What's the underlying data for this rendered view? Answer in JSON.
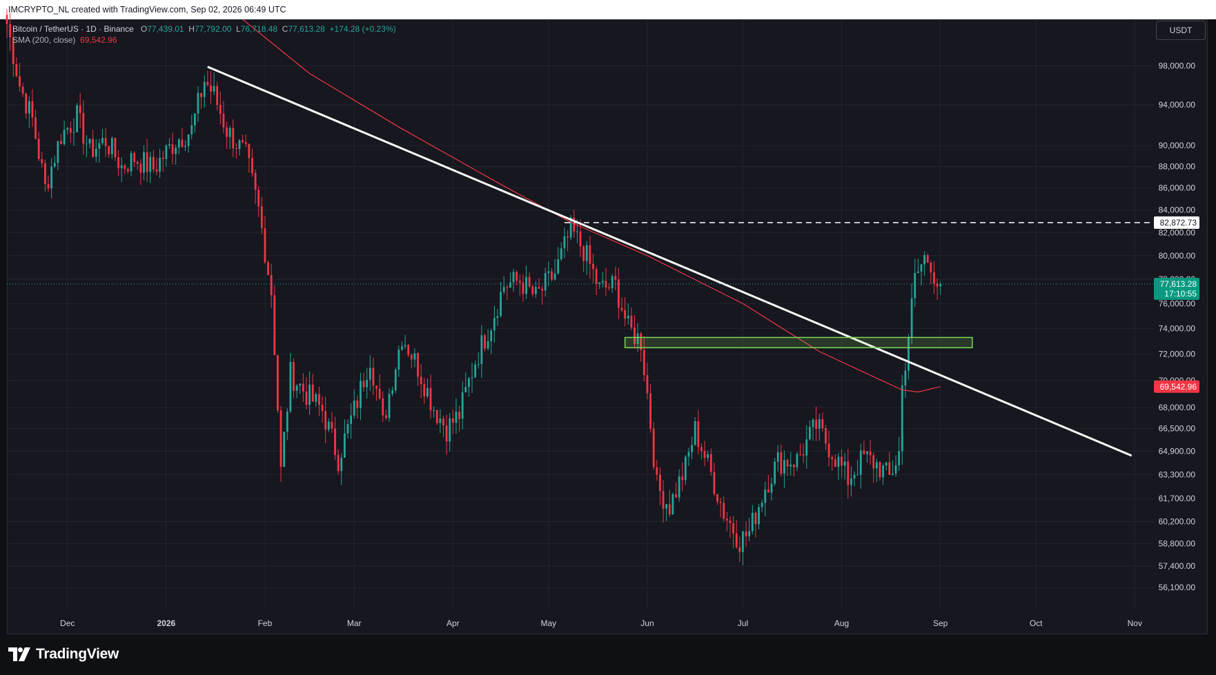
{
  "header": {
    "text": "IMCRYPTO_NL created with TradingView.com, Sep 02, 2026 06:49 UTC"
  },
  "legend": {
    "symbol": "Bitcoin / TetherUS · 1D · Binance",
    "open_label": "O",
    "open": "77,439.01",
    "high_label": "H",
    "high": "77,792.00",
    "low_label": "L",
    "low": "76,718.48",
    "close_label": "C",
    "close": "77,613.28",
    "change": "+174.28 (+0.23%)",
    "sma_label": "SMA (200, close)",
    "sma_value": "69,542.96"
  },
  "currency_button": "USDT",
  "branding": {
    "name": "TradingView"
  },
  "colors": {
    "up": "#26a69a",
    "down": "#f23645",
    "sma": "#f23645",
    "trendline": "#ffffff",
    "zone": "#7ed957",
    "background": "#16171f"
  },
  "chart_data": {
    "type": "candlestick",
    "x_ticks": [
      "Dec",
      "2026",
      "Feb",
      "Mar",
      "Apr",
      "May",
      "Jun",
      "Jul",
      "Aug",
      "Sep",
      "Oct",
      "Nov"
    ],
    "y_ticks": [
      98000,
      94000,
      90000,
      88000,
      86000,
      84000,
      82000,
      80000,
      78000,
      76000,
      74000,
      72000,
      70000,
      68000,
      66500,
      64900,
      63300,
      61700,
      60200,
      58800,
      57400,
      56100
    ],
    "y_tick_labels": [
      "98,000.00",
      "94,000.00",
      "90,000.00",
      "88,000.00",
      "86,000.00",
      "84,000.00",
      "82,000.00",
      "80,000.00",
      "78,000.00",
      "76,000.00",
      "74,000.00",
      "72,000.00",
      "70,000.00",
      "68,000.00",
      "66,500.00",
      "64,900.00",
      "63,300.00",
      "61,700.00",
      "60,200.00",
      "58,800.00",
      "57,400.00",
      "56,100.00"
    ],
    "scale": "log",
    "ylim": [
      54800,
      103000
    ],
    "xlim": [
      "2025-11-12",
      "2026-11-07"
    ],
    "price_labels": {
      "resistance": "82,872.73",
      "last_price": "77,613.28",
      "countdown": "17:10:55",
      "sma": "69,542.96"
    },
    "resistance_level": 82872.73,
    "last_price": 77613.28,
    "sma_last": 69542.96,
    "trendline": {
      "from": [
        "2026-01-14",
        97900
      ],
      "to": [
        "2026-10-31",
        64600
      ]
    },
    "zone": {
      "from": "2026-05-25",
      "to": "2026-09-11",
      "low": 72500,
      "high": 73300
    },
    "anchors": [
      [
        "2025-11-12",
        102500
      ],
      [
        "2025-11-16",
        96000
      ],
      [
        "2025-11-20",
        92500
      ],
      [
        "2025-11-24",
        86000
      ],
      [
        "2025-11-29",
        91000
      ],
      [
        "2025-12-04",
        92800
      ],
      [
        "2025-12-08",
        89500
      ],
      [
        "2025-12-13",
        90500
      ],
      [
        "2025-12-18",
        88000
      ],
      [
        "2025-12-22",
        88800
      ],
      [
        "2025-12-28",
        87800
      ],
      [
        "2026-01-04",
        90500
      ],
      [
        "2026-01-09",
        91500
      ],
      [
        "2026-01-13",
        96500
      ],
      [
        "2026-01-16",
        95000
      ],
      [
        "2026-01-20",
        91500
      ],
      [
        "2026-01-26",
        89000
      ],
      [
        "2026-01-30",
        84000
      ],
      [
        "2026-02-03",
        77000
      ],
      [
        "2026-02-06",
        63500
      ],
      [
        "2026-02-09",
        70500
      ],
      [
        "2026-02-14",
        69000
      ],
      [
        "2026-02-19",
        67800
      ],
      [
        "2026-02-24",
        64400
      ],
      [
        "2026-03-02",
        68500
      ],
      [
        "2026-03-06",
        71800
      ],
      [
        "2026-03-10",
        66800
      ],
      [
        "2026-03-16",
        73500
      ],
      [
        "2026-03-21",
        71000
      ],
      [
        "2026-03-26",
        68000
      ],
      [
        "2026-03-30",
        66500
      ],
      [
        "2026-04-03",
        67500
      ],
      [
        "2026-04-08",
        71500
      ],
      [
        "2026-04-13",
        74500
      ],
      [
        "2026-04-17",
        77500
      ],
      [
        "2026-04-22",
        77900
      ],
      [
        "2026-04-27",
        76500
      ],
      [
        "2026-05-03",
        78500
      ],
      [
        "2026-05-08",
        82200
      ],
      [
        "2026-05-12",
        80500
      ],
      [
        "2026-05-17",
        77200
      ],
      [
        "2026-05-22",
        77500
      ],
      [
        "2026-05-26",
        74000
      ],
      [
        "2026-05-30",
        73000
      ],
      [
        "2026-06-01",
        69000
      ],
      [
        "2026-06-04",
        62500
      ],
      [
        "2026-06-08",
        61200
      ],
      [
        "2026-06-13",
        63800
      ],
      [
        "2026-06-16",
        66400
      ],
      [
        "2026-06-20",
        64000
      ],
      [
        "2026-06-25",
        60800
      ],
      [
        "2026-06-30",
        59000
      ],
      [
        "2026-07-03",
        59500
      ],
      [
        "2026-07-08",
        62500
      ],
      [
        "2026-07-12",
        64200
      ],
      [
        "2026-07-18",
        64300
      ],
      [
        "2026-07-24",
        66700
      ],
      [
        "2026-07-30",
        64500
      ],
      [
        "2026-08-03",
        63000
      ],
      [
        "2026-08-08",
        64500
      ],
      [
        "2026-08-12",
        64000
      ],
      [
        "2026-08-16",
        63100
      ],
      [
        "2026-08-19",
        64800
      ],
      [
        "2026-08-20",
        69500
      ],
      [
        "2026-08-22",
        73500
      ],
      [
        "2026-08-24",
        78000
      ],
      [
        "2026-08-27",
        79800
      ],
      [
        "2026-08-29",
        79500
      ],
      [
        "2026-08-31",
        77400
      ],
      [
        "2026-09-01",
        77613
      ]
    ],
    "sma": [
      [
        "2026-01-25",
        103000
      ],
      [
        "2026-02-15",
        97200
      ],
      [
        "2026-03-15",
        91800
      ],
      [
        "2026-04-15",
        86500
      ],
      [
        "2026-05-08",
        82900
      ],
      [
        "2026-06-01",
        80000
      ],
      [
        "2026-07-01",
        76000
      ],
      [
        "2026-07-25",
        72200
      ],
      [
        "2026-08-10",
        70400
      ],
      [
        "2026-08-20",
        69300
      ],
      [
        "2026-08-25",
        69150
      ],
      [
        "2026-09-01",
        69543
      ]
    ]
  }
}
